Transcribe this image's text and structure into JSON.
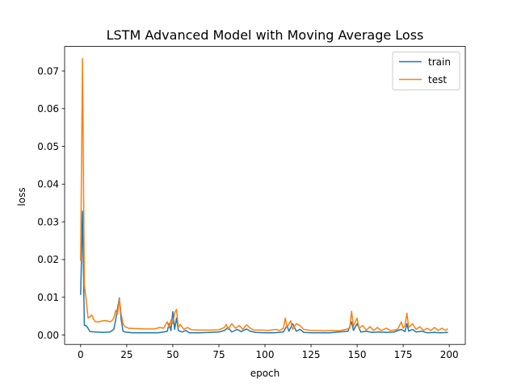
{
  "chart_data": {
    "type": "line",
    "title": "LSTM Advanced Model with Moving Average Loss",
    "xlabel": "epoch",
    "ylabel": "loss",
    "xlim": [
      -8.7,
      208.7
    ],
    "ylim": [
      -0.0025,
      0.0765
    ],
    "x_ticks": [
      0,
      25,
      50,
      75,
      100,
      125,
      150,
      175,
      200
    ],
    "y_ticks": [
      0.0,
      0.01,
      0.02,
      0.03,
      0.04,
      0.05,
      0.06,
      0.07
    ],
    "x_tick_labels": [
      "0",
      "25",
      "50",
      "75",
      "100",
      "125",
      "150",
      "175",
      "200"
    ],
    "y_tick_labels": [
      "0.00",
      "0.01",
      "0.02",
      "0.03",
      "0.04",
      "0.05",
      "0.06",
      "0.07"
    ],
    "grid": false,
    "legend_position": "top-right",
    "series": [
      {
        "name": "train",
        "color": "#1f77b4",
        "points": [
          [
            0,
            0.0108
          ],
          [
            1,
            0.0328
          ],
          [
            2,
            0.0025
          ],
          [
            3,
            0.0025
          ],
          [
            4,
            0.0018
          ],
          [
            5,
            0.0009
          ],
          [
            8,
            0.0008
          ],
          [
            12,
            0.0007
          ],
          [
            16,
            0.0008
          ],
          [
            18,
            0.0015
          ],
          [
            19,
            0.004
          ],
          [
            20,
            0.007
          ],
          [
            21,
            0.0098
          ],
          [
            22,
            0.004
          ],
          [
            23,
            0.001
          ],
          [
            24,
            0.0008
          ],
          [
            28,
            0.0006
          ],
          [
            35,
            0.0006
          ],
          [
            42,
            0.0006
          ],
          [
            45,
            0.0008
          ],
          [
            47,
            0.001
          ],
          [
            48,
            0.003
          ],
          [
            49,
            0.0012
          ],
          [
            50,
            0.0062
          ],
          [
            51,
            0.0015
          ],
          [
            52,
            0.0045
          ],
          [
            53,
            0.0012
          ],
          [
            55,
            0.0008
          ],
          [
            57,
            0.0012
          ],
          [
            59,
            0.0006
          ],
          [
            65,
            0.0006
          ],
          [
            70,
            0.0007
          ],
          [
            75,
            0.0008
          ],
          [
            78,
            0.0012
          ],
          [
            80,
            0.002
          ],
          [
            82,
            0.0008
          ],
          [
            85,
            0.0015
          ],
          [
            87,
            0.0009
          ],
          [
            90,
            0.0016
          ],
          [
            92,
            0.001
          ],
          [
            95,
            0.0007
          ],
          [
            100,
            0.0006
          ],
          [
            105,
            0.0006
          ],
          [
            110,
            0.0008
          ],
          [
            112,
            0.0025
          ],
          [
            113,
            0.001
          ],
          [
            115,
            0.003
          ],
          [
            117,
            0.001
          ],
          [
            119,
            0.0015
          ],
          [
            121,
            0.0007
          ],
          [
            125,
            0.0006
          ],
          [
            130,
            0.0006
          ],
          [
            135,
            0.0006
          ],
          [
            140,
            0.0008
          ],
          [
            145,
            0.001
          ],
          [
            147,
            0.0035
          ],
          [
            148,
            0.0012
          ],
          [
            150,
            0.003
          ],
          [
            152,
            0.0008
          ],
          [
            155,
            0.001
          ],
          [
            158,
            0.0007
          ],
          [
            162,
            0.0008
          ],
          [
            166,
            0.0007
          ],
          [
            170,
            0.0008
          ],
          [
            174,
            0.0015
          ],
          [
            176,
            0.0009
          ],
          [
            177,
            0.003
          ],
          [
            178,
            0.001
          ],
          [
            180,
            0.0015
          ],
          [
            182,
            0.0008
          ],
          [
            185,
            0.001
          ],
          [
            188,
            0.0006
          ],
          [
            192,
            0.0007
          ],
          [
            195,
            0.0006
          ],
          [
            199,
            0.0007
          ]
        ]
      },
      {
        "name": "test",
        "color": "#ff7f0e",
        "points": [
          [
            0,
            0.0198
          ],
          [
            1,
            0.0733
          ],
          [
            2,
            0.0132
          ],
          [
            3,
            0.0095
          ],
          [
            4,
            0.0045
          ],
          [
            5,
            0.0048
          ],
          [
            6,
            0.0053
          ],
          [
            7,
            0.0042
          ],
          [
            8,
            0.0035
          ],
          [
            10,
            0.0035
          ],
          [
            12,
            0.0038
          ],
          [
            14,
            0.0038
          ],
          [
            16,
            0.0035
          ],
          [
            17,
            0.0038
          ],
          [
            18,
            0.0045
          ],
          [
            19,
            0.0065
          ],
          [
            20,
            0.0055
          ],
          [
            21,
            0.0095
          ],
          [
            22,
            0.0055
          ],
          [
            23,
            0.003
          ],
          [
            24,
            0.0022
          ],
          [
            26,
            0.0018
          ],
          [
            30,
            0.0017
          ],
          [
            35,
            0.0016
          ],
          [
            40,
            0.0016
          ],
          [
            43,
            0.002
          ],
          [
            45,
            0.0018
          ],
          [
            47,
            0.0035
          ],
          [
            48,
            0.002
          ],
          [
            49,
            0.004
          ],
          [
            50,
            0.003
          ],
          [
            51,
            0.0058
          ],
          [
            52,
            0.0068
          ],
          [
            53,
            0.002
          ],
          [
            54,
            0.0028
          ],
          [
            56,
            0.0015
          ],
          [
            58,
            0.002
          ],
          [
            60,
            0.0014
          ],
          [
            65,
            0.0013
          ],
          [
            70,
            0.0013
          ],
          [
            75,
            0.0014
          ],
          [
            78,
            0.002
          ],
          [
            79,
            0.0028
          ],
          [
            80,
            0.0015
          ],
          [
            82,
            0.003
          ],
          [
            84,
            0.0018
          ],
          [
            86,
            0.0025
          ],
          [
            88,
            0.0015
          ],
          [
            90,
            0.0027
          ],
          [
            92,
            0.0018
          ],
          [
            94,
            0.0013
          ],
          [
            98,
            0.0013
          ],
          [
            102,
            0.0012
          ],
          [
            106,
            0.0015
          ],
          [
            108,
            0.0012
          ],
          [
            110,
            0.0018
          ],
          [
            111,
            0.0045
          ],
          [
            112,
            0.002
          ],
          [
            114,
            0.0038
          ],
          [
            115,
            0.0015
          ],
          [
            117,
            0.003
          ],
          [
            119,
            0.0025
          ],
          [
            121,
            0.0015
          ],
          [
            125,
            0.0012
          ],
          [
            128,
            0.0012
          ],
          [
            132,
            0.0011
          ],
          [
            136,
            0.0012
          ],
          [
            140,
            0.0011
          ],
          [
            144,
            0.0015
          ],
          [
            146,
            0.0018
          ],
          [
            147,
            0.0063
          ],
          [
            148,
            0.0022
          ],
          [
            149,
            0.0035
          ],
          [
            150,
            0.0045
          ],
          [
            151,
            0.0018
          ],
          [
            153,
            0.0025
          ],
          [
            155,
            0.0013
          ],
          [
            157,
            0.0022
          ],
          [
            159,
            0.0012
          ],
          [
            161,
            0.002
          ],
          [
            163,
            0.0012
          ],
          [
            166,
            0.0018
          ],
          [
            168,
            0.0012
          ],
          [
            170,
            0.0013
          ],
          [
            172,
            0.0015
          ],
          [
            174,
            0.0035
          ],
          [
            175,
            0.0018
          ],
          [
            176,
            0.0025
          ],
          [
            177,
            0.0058
          ],
          [
            178,
            0.002
          ],
          [
            180,
            0.003
          ],
          [
            182,
            0.0015
          ],
          [
            184,
            0.0022
          ],
          [
            186,
            0.0012
          ],
          [
            188,
            0.0018
          ],
          [
            190,
            0.0012
          ],
          [
            192,
            0.002
          ],
          [
            194,
            0.0012
          ],
          [
            196,
            0.0018
          ],
          [
            198,
            0.0012
          ],
          [
            199,
            0.0016
          ]
        ]
      }
    ]
  }
}
